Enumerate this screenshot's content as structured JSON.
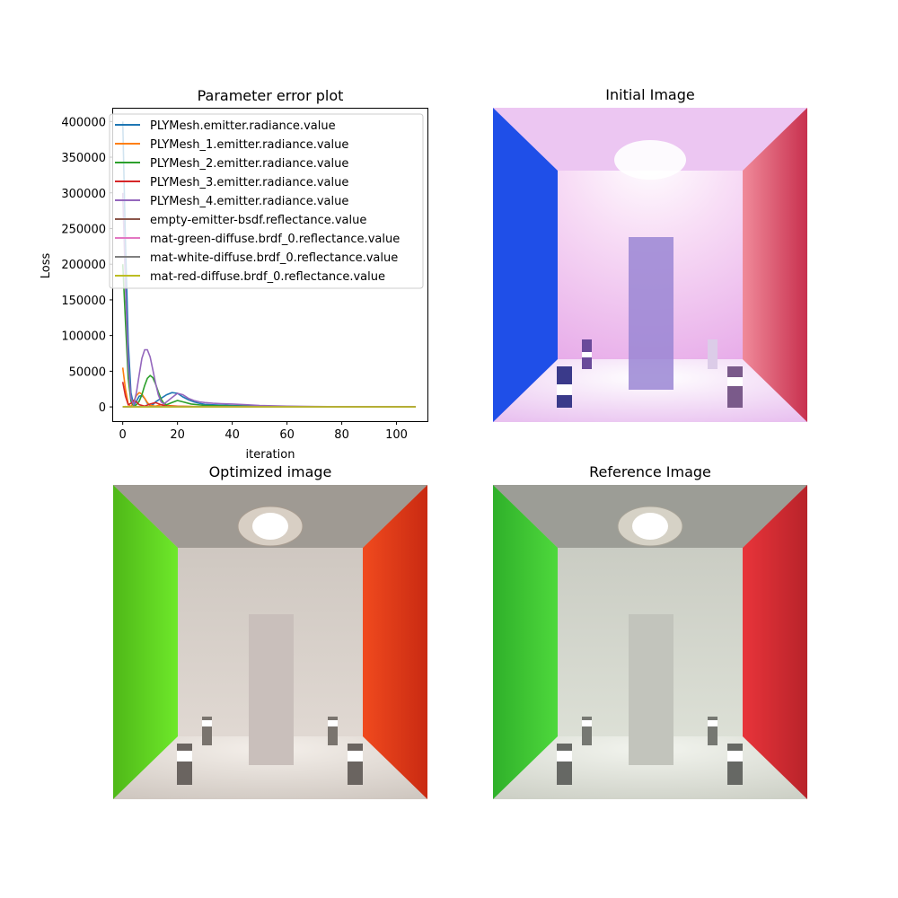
{
  "figure": {
    "titles": {
      "plot": "Parameter error plot",
      "initial": "Initial Image",
      "optimized": "Optimized image",
      "reference": "Reference Image"
    }
  },
  "chart_data": {
    "type": "line",
    "title": "Parameter error plot",
    "xlabel": "iteration",
    "ylabel": "Loss",
    "xlim": [
      -3.5,
      111.3
    ],
    "ylim": [
      -20000,
      418000
    ],
    "xticks": [
      0,
      20,
      40,
      60,
      80,
      100
    ],
    "yticks": [
      0,
      50000,
      100000,
      150000,
      200000,
      250000,
      300000,
      350000,
      400000
    ],
    "grid": false,
    "legend_position": "top-right",
    "series": [
      {
        "name": "PLYMesh.emitter.radiance.value",
        "color": "#1f77b4",
        "x": [
          0,
          1,
          2,
          3,
          4,
          5,
          6,
          7,
          8,
          9,
          10,
          11,
          12,
          14,
          16,
          18,
          20,
          22,
          24,
          26,
          28,
          30,
          32,
          35,
          40,
          45,
          50,
          60,
          70,
          80,
          90,
          100,
          107
        ],
        "y": [
          400000,
          230000,
          90000,
          20000,
          2000,
          8000,
          15000,
          16000,
          12000,
          5000,
          1500,
          3000,
          7000,
          12000,
          17000,
          20000,
          19000,
          14000,
          10000,
          7000,
          5000,
          3500,
          3000,
          2500,
          2000,
          1500,
          1000,
          500,
          300,
          200,
          100,
          50,
          0
        ]
      },
      {
        "name": "PLYMesh_1.emitter.radiance.value",
        "color": "#ff7f0e",
        "x": [
          0,
          1,
          2,
          3,
          4,
          5,
          6,
          7,
          8,
          9,
          10,
          12,
          14,
          16,
          20,
          30,
          40,
          60,
          80,
          100,
          107
        ],
        "y": [
          55000,
          25000,
          4000,
          0,
          8000,
          16000,
          20000,
          18000,
          12000,
          6000,
          2000,
          1000,
          3000,
          2000,
          1000,
          300,
          200,
          100,
          50,
          0,
          0
        ]
      },
      {
        "name": "PLYMesh_2.emitter.radiance.value",
        "color": "#2ca02c",
        "x": [
          0,
          1,
          2,
          3,
          4,
          5,
          6,
          7,
          8,
          9,
          10,
          11,
          12,
          13,
          14,
          15,
          16,
          18,
          20,
          22,
          25,
          30,
          35,
          40,
          50,
          60,
          80,
          100,
          107
        ],
        "y": [
          200000,
          120000,
          40000,
          8000,
          1000,
          3000,
          8000,
          17000,
          30000,
          40000,
          44000,
          41000,
          32000,
          21000,
          11000,
          5000,
          3000,
          6000,
          9000,
          7000,
          4000,
          2000,
          1500,
          1000,
          500,
          200,
          100,
          50,
          0
        ]
      },
      {
        "name": "PLYMesh_3.emitter.radiance.value",
        "color": "#d62728",
        "x": [
          0,
          1,
          2,
          3,
          4,
          5,
          6,
          8,
          10,
          12,
          14,
          16,
          20,
          30,
          40,
          60,
          80,
          100,
          107
        ],
        "y": [
          35000,
          15000,
          3000,
          5000,
          9000,
          7000,
          3000,
          1000,
          4000,
          6000,
          3000,
          1000,
          600,
          300,
          200,
          100,
          50,
          0,
          0
        ]
      },
      {
        "name": "PLYMesh_4.emitter.radiance.value",
        "color": "#9467bd",
        "x": [
          0,
          1,
          2,
          3,
          4,
          5,
          6,
          7,
          8,
          9,
          10,
          11,
          12,
          13,
          14,
          15,
          16,
          18,
          20,
          22,
          24,
          26,
          28,
          30,
          33,
          36,
          40,
          45,
          50,
          60,
          70,
          80,
          90,
          100,
          107
        ],
        "y": [
          300000,
          170000,
          60000,
          12000,
          3000,
          20000,
          45000,
          68000,
          80000,
          80000,
          70000,
          52000,
          33000,
          17000,
          7000,
          4000,
          7000,
          13000,
          19000,
          17000,
          12000,
          9000,
          7000,
          6000,
          5000,
          4500,
          4000,
          3000,
          2000,
          1000,
          500,
          300,
          200,
          100,
          50
        ]
      },
      {
        "name": "empty-emitter-bsdf.reflectance.value",
        "color": "#8c564b",
        "x": [
          0,
          107
        ],
        "y": [
          0,
          0
        ]
      },
      {
        "name": "mat-green-diffuse.brdf_0.reflectance.value",
        "color": "#e377c2",
        "x": [
          0,
          107
        ],
        "y": [
          0,
          0
        ]
      },
      {
        "name": "mat-white-diffuse.brdf_0.reflectance.value",
        "color": "#7f7f7f",
        "x": [
          0,
          107
        ],
        "y": [
          0,
          0
        ]
      },
      {
        "name": "mat-red-diffuse.brdf_0.reflectance.value",
        "color": "#bcbd22",
        "x": [
          0,
          1,
          2,
          3,
          5,
          8,
          12,
          20,
          40,
          60,
          80,
          100,
          107
        ],
        "y": [
          0,
          500,
          200,
          0,
          0,
          0,
          0,
          0,
          0,
          0,
          0,
          0,
          0
        ]
      }
    ]
  },
  "colors": {
    "green_wall": "#55dd22",
    "red_wall": "#e03020",
    "blue_wall": "#1f4fe8",
    "pink_wall": "#d8406a",
    "warm_wall": "#dcd6cf",
    "initial_glow": "#f4c8f4",
    "back_panel": "#9a86d4"
  }
}
